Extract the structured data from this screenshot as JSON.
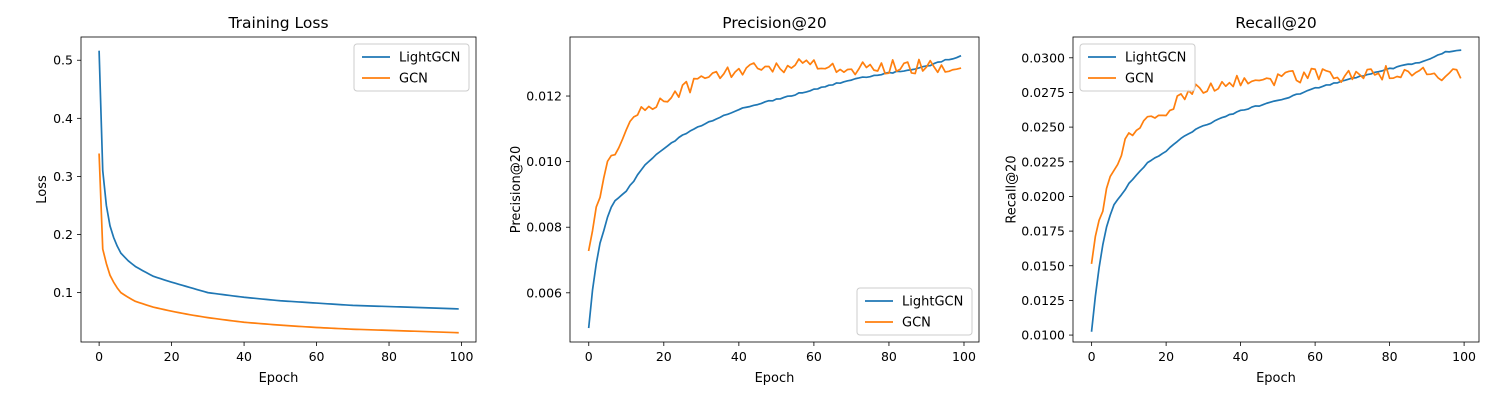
{
  "chart_data": [
    {
      "type": "line",
      "title": "Training Loss",
      "xlabel": "Epoch",
      "ylabel": "Loss",
      "xlim": [
        -5,
        104
      ],
      "ylim": [
        0.015,
        0.54
      ],
      "xticks": [
        0,
        20,
        40,
        60,
        80,
        100
      ],
      "yticks": [
        0.1,
        0.2,
        0.3,
        0.4,
        0.5
      ],
      "ytick_labels": [
        "0.1",
        "0.2",
        "0.3",
        "0.4",
        "0.5"
      ],
      "legend_position": "top-right",
      "grid": false,
      "curve": "loss",
      "series": [
        {
          "name": "LightGCN",
          "color": "#1f77b4",
          "anchors": [
            [
              0,
              0.515
            ],
            [
              1,
              0.31
            ],
            [
              2,
              0.25
            ],
            [
              3,
              0.215
            ],
            [
              4,
              0.195
            ],
            [
              5,
              0.18
            ],
            [
              6,
              0.168
            ],
            [
              8,
              0.155
            ],
            [
              10,
              0.145
            ],
            [
              15,
              0.128
            ],
            [
              20,
              0.118
            ],
            [
              25,
              0.109
            ],
            [
              30,
              0.1
            ],
            [
              40,
              0.092
            ],
            [
              50,
              0.086
            ],
            [
              60,
              0.082
            ],
            [
              70,
              0.078
            ],
            [
              80,
              0.076
            ],
            [
              90,
              0.074
            ],
            [
              99,
              0.072
            ]
          ],
          "noise": 0
        },
        {
          "name": "GCN",
          "color": "#ff7f0e",
          "anchors": [
            [
              0,
              0.338
            ],
            [
              1,
              0.175
            ],
            [
              2,
              0.15
            ],
            [
              3,
              0.13
            ],
            [
              4,
              0.118
            ],
            [
              5,
              0.108
            ],
            [
              6,
              0.1
            ],
            [
              8,
              0.092
            ],
            [
              10,
              0.085
            ],
            [
              15,
              0.075
            ],
            [
              20,
              0.068
            ],
            [
              25,
              0.062
            ],
            [
              30,
              0.057
            ],
            [
              40,
              0.049
            ],
            [
              50,
              0.044
            ],
            [
              60,
              0.04
            ],
            [
              70,
              0.037
            ],
            [
              80,
              0.035
            ],
            [
              90,
              0.033
            ],
            [
              99,
              0.031
            ]
          ],
          "noise": 0
        }
      ]
    },
    {
      "type": "line",
      "title": "Precision@20",
      "xlabel": "Epoch",
      "ylabel": "Precision@20",
      "xlim": [
        -5,
        104
      ],
      "ylim": [
        0.0045,
        0.0138
      ],
      "xticks": [
        0,
        20,
        40,
        60,
        80,
        100
      ],
      "yticks": [
        0.006,
        0.008,
        0.01,
        0.012
      ],
      "ytick_labels": [
        "0.006",
        "0.008",
        "0.010",
        "0.012"
      ],
      "legend_position": "bottom-right",
      "grid": false,
      "curve": "metric",
      "series": [
        {
          "name": "LightGCN",
          "color": "#1f77b4",
          "anchors": [
            [
              0,
              0.00495
            ],
            [
              1,
              0.0061
            ],
            [
              2,
              0.0069
            ],
            [
              3,
              0.0075
            ],
            [
              4,
              0.0079
            ],
            [
              5,
              0.0083
            ],
            [
              6,
              0.0086
            ],
            [
              7,
              0.0088
            ],
            [
              8,
              0.0089
            ],
            [
              10,
              0.0091
            ],
            [
              15,
              0.0099
            ],
            [
              20,
              0.0104
            ],
            [
              25,
              0.0108
            ],
            [
              30,
              0.0111
            ],
            [
              40,
              0.0116
            ],
            [
              50,
              0.0119
            ],
            [
              60,
              0.0122
            ],
            [
              70,
              0.0125
            ],
            [
              80,
              0.0127
            ],
            [
              90,
              0.0129
            ],
            [
              95,
              0.0131
            ],
            [
              99,
              0.0132
            ]
          ],
          "noise": 2e-05
        },
        {
          "name": "GCN",
          "color": "#ff7f0e",
          "anchors": [
            [
              0,
              0.0073
            ],
            [
              1,
              0.0081
            ],
            [
              2,
              0.0085
            ],
            [
              3,
              0.0089
            ],
            [
              4,
              0.0093
            ],
            [
              5,
              0.0098
            ],
            [
              6,
              0.0102
            ],
            [
              8,
              0.0106
            ],
            [
              10,
              0.011
            ],
            [
              12,
              0.0113
            ],
            [
              15,
              0.0116
            ],
            [
              20,
              0.0119
            ],
            [
              25,
              0.0122
            ],
            [
              30,
              0.0125
            ],
            [
              40,
              0.0128
            ],
            [
              50,
              0.0129
            ],
            [
              60,
              0.013
            ],
            [
              70,
              0.0128
            ],
            [
              80,
              0.0129
            ],
            [
              90,
              0.0129
            ],
            [
              99,
              0.0129
            ]
          ],
          "noise": 0.00022
        }
      ]
    },
    {
      "type": "line",
      "title": "Recall@20",
      "xlabel": "Epoch",
      "ylabel": "Recall@20",
      "xlim": [
        -5,
        104
      ],
      "ylim": [
        0.0095,
        0.0315
      ],
      "xticks": [
        0,
        20,
        40,
        60,
        80,
        100
      ],
      "yticks": [
        0.01,
        0.0125,
        0.015,
        0.0175,
        0.02,
        0.0225,
        0.025,
        0.0275,
        0.03
      ],
      "ytick_labels": [
        "0.0100",
        "0.0125",
        "0.0150",
        "0.0175",
        "0.0200",
        "0.0225",
        "0.0250",
        "0.0275",
        "0.0300"
      ],
      "legend_position": "top-left",
      "grid": false,
      "curve": "metric",
      "series": [
        {
          "name": "LightGCN",
          "color": "#1f77b4",
          "anchors": [
            [
              0,
              0.0103
            ],
            [
              1,
              0.0128
            ],
            [
              2,
              0.0148
            ],
            [
              3,
              0.0165
            ],
            [
              4,
              0.0178
            ],
            [
              5,
              0.0187
            ],
            [
              6,
              0.0194
            ],
            [
              8,
              0.0201
            ],
            [
              10,
              0.0209
            ],
            [
              15,
              0.0224
            ],
            [
              20,
              0.0233
            ],
            [
              25,
              0.0244
            ],
            [
              30,
              0.0251
            ],
            [
              40,
              0.0262
            ],
            [
              50,
              0.0269
            ],
            [
              60,
              0.0278
            ],
            [
              70,
              0.0285
            ],
            [
              80,
              0.0292
            ],
            [
              90,
              0.0298
            ],
            [
              95,
              0.0304
            ],
            [
              99,
              0.0305
            ]
          ],
          "noise": 5e-05
        },
        {
          "name": "GCN",
          "color": "#ff7f0e",
          "anchors": [
            [
              0,
              0.0152
            ],
            [
              1,
              0.0172
            ],
            [
              2,
              0.0183
            ],
            [
              3,
              0.0192
            ],
            [
              4,
              0.0201
            ],
            [
              5,
              0.0215
            ],
            [
              6,
              0.0222
            ],
            [
              8,
              0.0232
            ],
            [
              10,
              0.0242
            ],
            [
              12,
              0.0248
            ],
            [
              15,
              0.0255
            ],
            [
              20,
              0.0262
            ],
            [
              25,
              0.0273
            ],
            [
              30,
              0.0279
            ],
            [
              40,
              0.0284
            ],
            [
              50,
              0.0285
            ],
            [
              60,
              0.0288
            ],
            [
              70,
              0.0286
            ],
            [
              80,
              0.029
            ],
            [
              90,
              0.0289
            ],
            [
              99,
              0.0287
            ]
          ],
          "noise": 0.0005
        }
      ]
    }
  ]
}
